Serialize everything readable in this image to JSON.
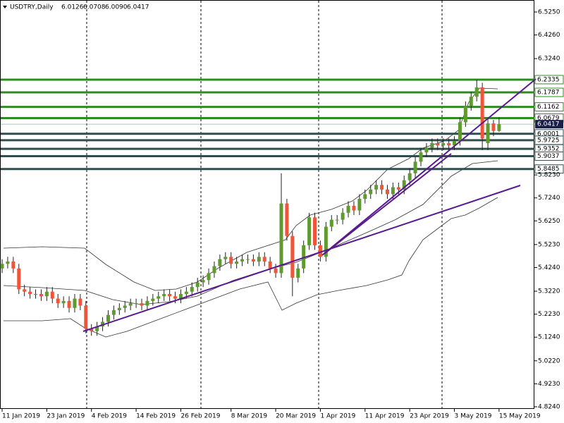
{
  "chart_data": {
    "type": "candlestick",
    "title": "USDTRY,Daily",
    "header_prices": [
      "6.0126",
      "6.0708",
      "6.0090",
      "6.0417"
    ],
    "categories": [
      "11 Jan 2019",
      null,
      null,
      null,
      null,
      null,
      null,
      null,
      "23 Jan 2019",
      null,
      null,
      null,
      null,
      null,
      null,
      null,
      "4 Feb 2019",
      null,
      null,
      null,
      null,
      null,
      null,
      null,
      "14 Feb 2019",
      null,
      null,
      null,
      null,
      null,
      null,
      null,
      "26 Feb 2019",
      null,
      null,
      null,
      null,
      null,
      null,
      null,
      null,
      "8 Mar 2019",
      null,
      null,
      null,
      null,
      null,
      null,
      null,
      "20 Mar 2019",
      null,
      null,
      null,
      null,
      null,
      null,
      null,
      "1 Apr 2019",
      null,
      null,
      null,
      null,
      null,
      null,
      null,
      "11 Apr 2019",
      null,
      null,
      null,
      null,
      null,
      null,
      null,
      "23 Apr 2019",
      null,
      null,
      null,
      null,
      null,
      null,
      null,
      "3 May 2019",
      null,
      null,
      null,
      null,
      null,
      null,
      null,
      "15 May 2019"
    ],
    "open": [
      5.42,
      5.44,
      5.45,
      5.42,
      5.33,
      5.32,
      5.31,
      5.31,
      5.3,
      5.32,
      5.29,
      5.27,
      5.28,
      5.25,
      5.29,
      5.26,
      5.16,
      5.15,
      5.17,
      5.19,
      5.22,
      5.24,
      5.25,
      5.26,
      5.27,
      5.27,
      5.26,
      5.28,
      5.29,
      5.3,
      5.31,
      5.3,
      5.29,
      5.31,
      5.32,
      5.34,
      5.36,
      5.37,
      5.4,
      5.43,
      5.46,
      5.47,
      5.44,
      5.45,
      5.46,
      5.46,
      5.45,
      5.47,
      5.45,
      5.42,
      5.4,
      5.7,
      5.56,
      5.38,
      5.42,
      5.52,
      5.64,
      5.52,
      5.47,
      5.6,
      5.63,
      5.63,
      5.66,
      5.69,
      5.67,
      5.72,
      5.74,
      5.76,
      5.78,
      5.76,
      5.74,
      5.77,
      5.76,
      5.8,
      5.83,
      5.88,
      5.92,
      5.94,
      5.96,
      5.95,
      5.96,
      5.95,
      5.97,
      6.05,
      6.12,
      6.16,
      6.2,
      5.96,
      6.045,
      6.0126
    ],
    "high": [
      5.46,
      5.47,
      5.47,
      5.44,
      5.35,
      5.34,
      5.33,
      5.33,
      5.34,
      5.34,
      5.31,
      5.3,
      5.3,
      5.31,
      5.31,
      5.28,
      5.18,
      5.19,
      5.21,
      5.24,
      5.26,
      5.27,
      5.28,
      5.29,
      5.29,
      5.29,
      5.3,
      5.31,
      5.32,
      5.33,
      5.33,
      5.32,
      5.33,
      5.34,
      5.36,
      5.38,
      5.39,
      5.42,
      5.45,
      5.48,
      5.49,
      5.49,
      5.47,
      5.48,
      5.48,
      5.48,
      5.49,
      5.49,
      5.47,
      5.44,
      5.83,
      5.72,
      5.58,
      5.44,
      5.54,
      5.66,
      5.66,
      5.54,
      5.62,
      5.65,
      5.65,
      5.68,
      5.71,
      5.71,
      5.74,
      5.76,
      5.78,
      5.8,
      5.8,
      5.78,
      5.79,
      5.79,
      5.82,
      5.85,
      5.9,
      5.94,
      5.96,
      5.98,
      5.98,
      5.98,
      5.98,
      5.99,
      6.07,
      6.14,
      6.18,
      6.233,
      6.22,
      6.07,
      6.06,
      6.0708
    ],
    "low": [
      5.4,
      5.42,
      5.4,
      5.31,
      5.3,
      5.29,
      5.29,
      5.28,
      5.28,
      5.27,
      5.25,
      5.25,
      5.23,
      5.23,
      5.24,
      5.14,
      5.13,
      5.13,
      5.15,
      5.17,
      5.2,
      5.22,
      5.23,
      5.24,
      5.25,
      5.24,
      5.24,
      5.26,
      5.27,
      5.28,
      5.28,
      5.27,
      5.27,
      5.29,
      5.3,
      5.32,
      5.34,
      5.35,
      5.38,
      5.41,
      5.44,
      5.42,
      5.42,
      5.43,
      5.44,
      5.43,
      5.43,
      5.43,
      5.4,
      5.38,
      5.38,
      5.54,
      5.3,
      5.36,
      5.4,
      5.5,
      5.5,
      5.45,
      5.45,
      5.58,
      5.61,
      5.61,
      5.64,
      5.65,
      5.65,
      5.7,
      5.72,
      5.74,
      5.74,
      5.72,
      5.72,
      5.74,
      5.74,
      5.78,
      5.81,
      5.86,
      5.9,
      5.92,
      5.93,
      5.93,
      5.93,
      5.93,
      5.95,
      6.03,
      6.1,
      6.14,
      5.93,
      5.93,
      5.99,
      6.009
    ],
    "close": [
      5.44,
      5.45,
      5.42,
      5.33,
      5.32,
      5.31,
      5.31,
      5.3,
      5.32,
      5.29,
      5.27,
      5.28,
      5.25,
      5.29,
      5.26,
      5.16,
      5.15,
      5.17,
      5.19,
      5.22,
      5.24,
      5.25,
      5.26,
      5.27,
      5.27,
      5.26,
      5.28,
      5.29,
      5.3,
      5.31,
      5.3,
      5.29,
      5.31,
      5.32,
      5.34,
      5.36,
      5.37,
      5.4,
      5.43,
      5.46,
      5.47,
      5.44,
      5.45,
      5.46,
      5.46,
      5.45,
      5.47,
      5.45,
      5.42,
      5.4,
      5.7,
      5.56,
      5.38,
      5.42,
      5.52,
      5.64,
      5.52,
      5.47,
      5.6,
      5.63,
      5.63,
      5.66,
      5.69,
      5.67,
      5.72,
      5.74,
      5.76,
      5.78,
      5.76,
      5.74,
      5.77,
      5.76,
      5.8,
      5.83,
      5.88,
      5.92,
      5.94,
      5.96,
      5.95,
      5.96,
      5.95,
      5.97,
      6.05,
      6.12,
      6.16,
      6.2,
      5.98,
      6.045,
      6.0126,
      6.0417
    ],
    "up_color": "#5f9a2f",
    "down_color": "#f0553a",
    "ylim": [
      4.824,
      6.525
    ],
    "yticks": [
      {
        "value": 6.525,
        "label": "6.5250"
      },
      {
        "value": 6.426,
        "label": "6.4260"
      },
      {
        "value": 6.324,
        "label": "6.3240"
      },
      {
        "value": 5.823,
        "label": "5.8230"
      },
      {
        "value": 5.724,
        "label": "5.7240"
      },
      {
        "value": 5.625,
        "label": "5.6250"
      },
      {
        "value": 5.523,
        "label": "5.5230"
      },
      {
        "value": 5.424,
        "label": "5.4240"
      },
      {
        "value": 5.322,
        "label": "5.3220"
      },
      {
        "value": 5.223,
        "label": "5.2230"
      },
      {
        "value": 5.124,
        "label": "5.1240"
      },
      {
        "value": 5.022,
        "label": "5.0220"
      },
      {
        "value": 4.923,
        "label": "4.9230"
      },
      {
        "value": 4.824,
        "label": "4.8240"
      }
    ],
    "levels": [
      {
        "price": 6.2335,
        "color": "#2e8b22"
      },
      {
        "price": 6.1787,
        "color": "#2e8b22"
      },
      {
        "price": 6.1162,
        "color": "#2e8b22"
      },
      {
        "price": 6.0679,
        "color": "#2e8b22"
      },
      {
        "price": 6.0001,
        "color": "#2f4f4f"
      },
      {
        "price": 5.9725,
        "color": "#2f4f4f"
      },
      {
        "price": 5.9352,
        "color": "#2f4f4f"
      },
      {
        "price": 5.9037,
        "color": "#2f4f4f"
      },
      {
        "price": 5.8485,
        "color": "#2f4f4f"
      }
    ],
    "current_price": 6.0417,
    "current_color": "#1a1f4a"
  }
}
